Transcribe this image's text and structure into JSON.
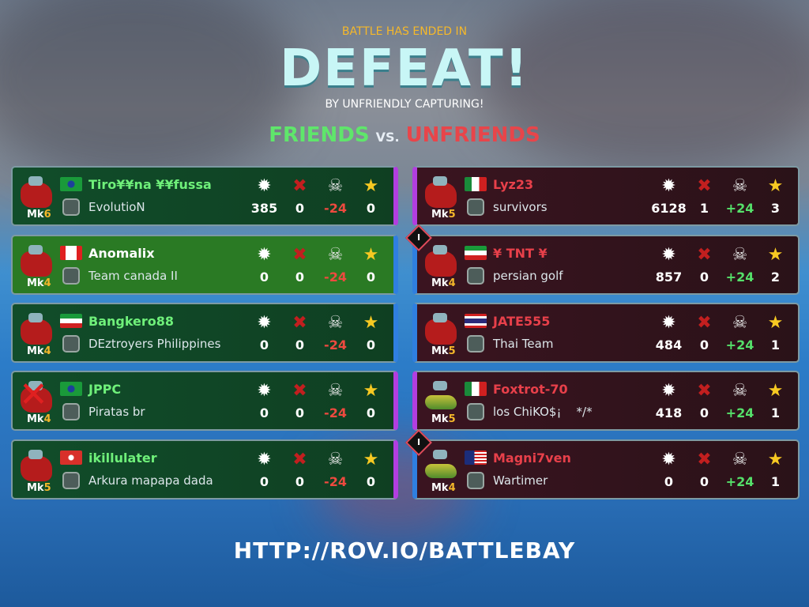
{
  "header": {
    "subtitle": "BATTLE HAS ENDED IN",
    "result": "DEFEAT!",
    "reason": "BY UNFRIENDLY CAPTURING!",
    "friends": "FRIENDS",
    "vs": "VS.",
    "unfriends": "UNFRIENDS"
  },
  "stat_icons": [
    "explosion-icon",
    "sunk-ship-icon",
    "skull-crossbones-icon",
    "star-icon"
  ],
  "friends": [
    {
      "mk_prefix": "Mk",
      "mk": "6",
      "flag": "brazil",
      "name": "Tiro¥¥na ¥¥fussa",
      "clan": "EvolutioN",
      "damage": "385",
      "sunk": "0",
      "trophies": "-24",
      "stars": "0",
      "destroyed": false,
      "highlight": false
    },
    {
      "mk_prefix": "Mk",
      "mk": "4",
      "flag": "canada",
      "name": "Anomalix",
      "clan": "Team canada II",
      "damage": "0",
      "sunk": "0",
      "trophies": "-24",
      "stars": "0",
      "destroyed": false,
      "highlight": true
    },
    {
      "mk_prefix": "Mk",
      "mk": "4",
      "flag": "kuwait",
      "name": "Bangkero88",
      "clan": "DEztroyers Philippines",
      "damage": "0",
      "sunk": "0",
      "trophies": "-24",
      "stars": "0",
      "destroyed": false,
      "highlight": false
    },
    {
      "mk_prefix": "Mk",
      "mk": "4",
      "flag": "brazil",
      "name": "JPPC",
      "clan": "Piratas br",
      "damage": "0",
      "sunk": "0",
      "trophies": "-24",
      "stars": "0",
      "destroyed": true,
      "highlight": false
    },
    {
      "mk_prefix": "Mk",
      "mk": "5",
      "flag": "hong-kong",
      "name": "ikillulater",
      "clan": "Arkura mapapa dada",
      "damage": "0",
      "sunk": "0",
      "trophies": "-24",
      "stars": "0",
      "destroyed": false,
      "highlight": false
    }
  ],
  "unfriends": [
    {
      "mk_prefix": "Mk",
      "mk": "5",
      "flag": "mexico",
      "name": "Lyz23",
      "clan": "survivors",
      "damage": "6128",
      "sunk": "1",
      "trophies": "+24",
      "stars": "3",
      "badge": ""
    },
    {
      "mk_prefix": "Mk",
      "mk": "4",
      "flag": "iran",
      "name": "¥ TNT ¥",
      "clan": "persian golf",
      "damage": "857",
      "sunk": "0",
      "trophies": "+24",
      "stars": "2",
      "badge": "I"
    },
    {
      "mk_prefix": "Mk",
      "mk": "5",
      "flag": "thailand",
      "name": "JATE555",
      "clan": "Thai Team",
      "damage": "484",
      "sunk": "0",
      "trophies": "+24",
      "stars": "1",
      "badge": ""
    },
    {
      "mk_prefix": "Mk",
      "mk": "5",
      "flag": "mexico",
      "name": "Foxtrot-70",
      "clan": "los ChiKO$¡    */*",
      "damage": "418",
      "sunk": "0",
      "trophies": "+24",
      "stars": "1",
      "badge": ""
    },
    {
      "mk_prefix": "Mk",
      "mk": "4",
      "flag": "malaysia",
      "name": "Magni7ven",
      "clan": "Wartimer",
      "damage": "0",
      "sunk": "0",
      "trophies": "+24",
      "stars": "1",
      "badge": "I"
    }
  ],
  "footer": {
    "url": "HTTP://ROV.IO/BATTLEBAY"
  },
  "colors": {
    "friends": "#5fe66b",
    "unfriends": "#e8454a",
    "defeat": "#c8f6f6",
    "positive": "#55e06a",
    "negative": "#ee4a3f"
  }
}
